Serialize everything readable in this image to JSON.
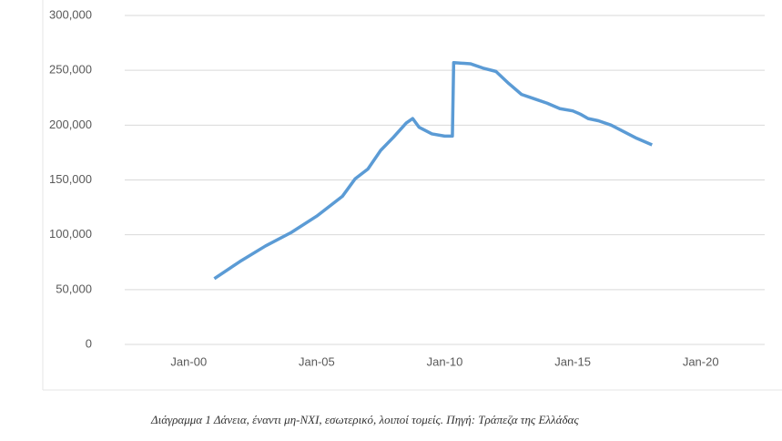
{
  "chart_data": {
    "type": "line",
    "caption": "Διάγραμμα 1 Δάνεια, έναντι μη-ΝΧΙ, εσωτερικό, λοιποί τομείς. Πηγή: Τράπεζα της Ελλάδας",
    "x": [
      2001.0,
      2002.0,
      2003.0,
      2004.0,
      2005.0,
      2006.0,
      2006.5,
      2007.0,
      2007.5,
      2008.0,
      2008.5,
      2008.75,
      2009.0,
      2009.5,
      2010.0,
      2010.3,
      2010.35,
      2011.0,
      2011.5,
      2012.0,
      2012.5,
      2013.0,
      2013.5,
      2014.0,
      2014.5,
      2015.0,
      2015.3,
      2015.6,
      2016.0,
      2016.5,
      2017.0,
      2017.5,
      2018.1
    ],
    "series": [
      {
        "color": "#5b9bd5",
        "values": [
          60000,
          75600,
          89800,
          102000,
          117000,
          135000,
          151000,
          160000,
          177000,
          189000,
          202000,
          206000,
          198000,
          192000,
          190000,
          190000,
          257000,
          256000,
          252000,
          249000,
          238000,
          228000,
          224000,
          220000,
          215000,
          213000,
          210000,
          206000,
          204000,
          200000,
          194000,
          188000,
          182000
        ]
      }
    ],
    "xlim": [
      1997.5,
      2022.5
    ],
    "xticks": [
      {
        "value": 2000,
        "label": "Jan-00"
      },
      {
        "value": 2005,
        "label": "Jan-05"
      },
      {
        "value": 2010,
        "label": "Jan-10"
      },
      {
        "value": 2015,
        "label": "Jan-15"
      },
      {
        "value": 2020,
        "label": "Jan-20"
      }
    ],
    "ylim": [
      0,
      300000
    ],
    "yticks": [
      0,
      {
        "value": 50000,
        "label": "50,000"
      },
      {
        "value": 100000,
        "label": "100,000"
      },
      {
        "value": 150000,
        "label": "150,000"
      },
      {
        "value": 200000,
        "label": "200,000"
      },
      {
        "value": 250000,
        "label": "250,000"
      },
      {
        "value": 300000,
        "label": "300,000"
      }
    ],
    "grid": true
  }
}
